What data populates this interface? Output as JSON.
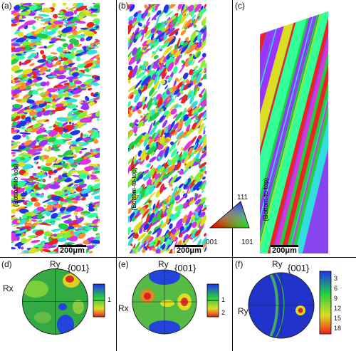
{
  "panels_top": [
    {
      "label": "(a)",
      "scale": "200μm",
      "vertical_label": "(Bottom-to-top)"
    },
    {
      "label": "(b)",
      "scale": "200μm",
      "vertical_label": "(Bottom-to-top)"
    },
    {
      "label": "(c)",
      "scale": "200μm",
      "vertical_label": "(Bottom-to-top)"
    }
  ],
  "ipf_key": {
    "top": "111",
    "left": "001",
    "right": "101"
  },
  "panels_bottom": [
    {
      "label": "(d)",
      "family": "{001}",
      "pole_top": "Ry",
      "pole_side": "Rx",
      "scale_ticks": [
        "1"
      ]
    },
    {
      "label": "(e)",
      "family": "{001}",
      "pole_top": "Ry",
      "pole_side": "Rx",
      "scale_ticks": [
        "1",
        "2"
      ]
    },
    {
      "label": "(f)",
      "family": "{001}",
      "pole_top": "Ry",
      "pole_side": "Ry",
      "scale_ticks": [
        "3",
        "6",
        "9",
        "12",
        "15",
        "18"
      ]
    }
  ],
  "colors": {
    "red": "#ee2222",
    "green": "#22cc44",
    "blue": "#2233ee",
    "magenta": "#dd33dd",
    "cyan": "#33dddd",
    "yellow": "#dddd22"
  }
}
